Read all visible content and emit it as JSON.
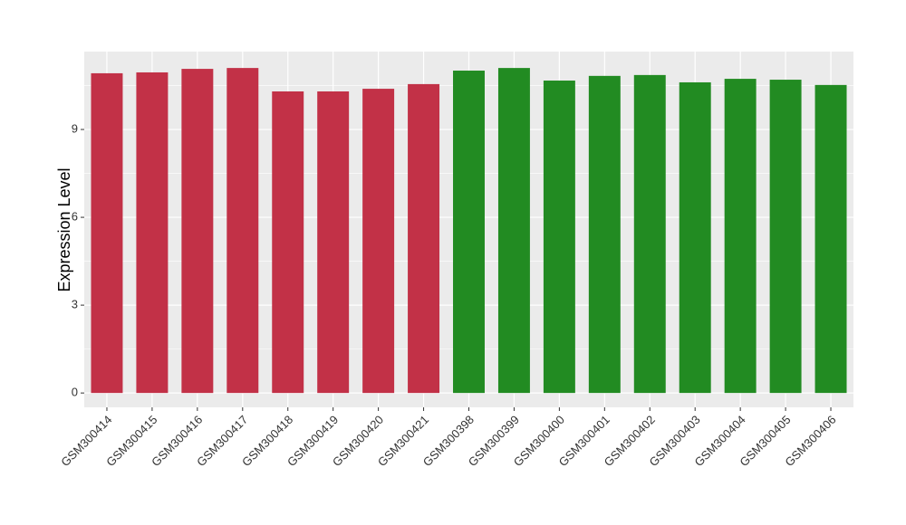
{
  "chart_data": {
    "type": "bar",
    "y_label": "Expression Level",
    "categories": [
      "GSM300414",
      "GSM300415",
      "GSM300416",
      "GSM300417",
      "GSM300418",
      "GSM300419",
      "GSM300420",
      "GSM300421",
      "GSM300398",
      "GSM300399",
      "GSM300400",
      "GSM300401",
      "GSM300402",
      "GSM300403",
      "GSM300404",
      "GSM300405",
      "GSM300406"
    ],
    "values": [
      10.92,
      10.95,
      11.07,
      11.1,
      10.3,
      10.3,
      10.39,
      10.55,
      11.01,
      11.1,
      10.67,
      10.83,
      10.86,
      10.61,
      10.73,
      10.7,
      10.52
    ],
    "colors": [
      "#c23147",
      "#c23147",
      "#c23147",
      "#c23147",
      "#c23147",
      "#c23147",
      "#c23147",
      "#c23147",
      "#228b22",
      "#228b22",
      "#228b22",
      "#228b22",
      "#228b22",
      "#228b22",
      "#228b22",
      "#228b22",
      "#228b22"
    ],
    "ylim": [
      -0.49,
      11.66
    ],
    "yticks": [
      0,
      3,
      6,
      9
    ],
    "yminor": [
      1.5,
      4.5,
      7.5,
      10.5
    ],
    "grid": true
  }
}
